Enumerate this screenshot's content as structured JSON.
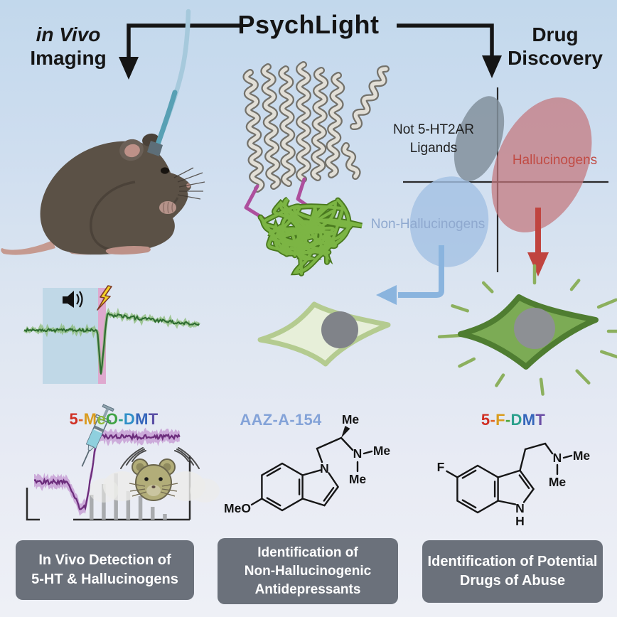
{
  "header": {
    "title": "PsychLight",
    "left": {
      "line1": "in Vivo",
      "line2": "Imaging"
    },
    "right": {
      "line1": "Drug",
      "line2": "Discovery"
    }
  },
  "quadrant": {
    "not_ligands": {
      "line1": "Not 5-HT2AR",
      "line2": "Ligands",
      "color": "#1e1e1e"
    },
    "hallucinogens": {
      "label": "Hallucinogens",
      "color": "#c14b44"
    },
    "non_hallucinogens": {
      "label": "Non-Hallucinogens",
      "color": "#8fa9cf"
    }
  },
  "compounds": {
    "five_meo_dmt": {
      "name": "5-MeO-DMT",
      "letters": [
        "5",
        "-",
        "M",
        "e",
        "O",
        "-",
        "D",
        "M",
        "T"
      ],
      "letter_colors": [
        "#d02f23",
        "#e0662a",
        "#d99c1e",
        "#8fba38",
        "#3fa344",
        "#2ba08c",
        "#2f8fc8",
        "#3566bb",
        "#5a4fa5"
      ]
    },
    "aaz": {
      "name": "AAZ-A-154",
      "color": "#84a3d8"
    },
    "five_f_dmt": {
      "name": "5-F-DMT",
      "letters": [
        "5",
        "-",
        "F",
        "-",
        "D",
        "M",
        "T"
      ],
      "letter_colors": [
        "#d02f23",
        "#e0662a",
        "#d99c1e",
        "#4fa83c",
        "#2ba08c",
        "#3566bb",
        "#6b4fa5"
      ]
    }
  },
  "chem": {
    "me": "Me",
    "n": "N",
    "h": "H",
    "meo": "MeO",
    "f": "F"
  },
  "htr_chart": {
    "type": "bar",
    "values": [
      35,
      50,
      65,
      40,
      33,
      18,
      8
    ],
    "color": "#a9abae"
  },
  "outcome_boxes": [
    {
      "lines": [
        "In Vivo Detection of",
        "5-HT & Hallucinogens"
      ]
    },
    {
      "lines": [
        "Identification of",
        "Non-Hallucinogenic",
        "Antidepressants"
      ]
    },
    {
      "lines": [
        "Identification of Potential",
        "Drugs of Abuse"
      ]
    }
  ],
  "palette": {
    "background_top": "#c2d8ec",
    "background_bottom": "#eef0f6",
    "arrow_black": "#151515",
    "ellipse_gray": "#82909c",
    "ellipse_red": "#c4767c",
    "ellipse_blue": "#a3c1e3",
    "arrow_red": "#c0443f",
    "arrow_blue": "#8ab4de",
    "trace_green": "#2d6b31",
    "trace_purple": "#6c2d7c",
    "tone_rect": "#bcd6e6",
    "shock_rect": "#dfa9cf",
    "cell_light_fill": "#e7efd9",
    "cell_light_stroke": "#b4cb90",
    "cell_dark_fill": "#7cab55",
    "cell_dark_stroke": "#4f7d31",
    "nucleus": "#808389",
    "outcome_box": "#6b717b",
    "gfp_green": "#7cb544",
    "linker_magenta": "#ad4f9d"
  }
}
